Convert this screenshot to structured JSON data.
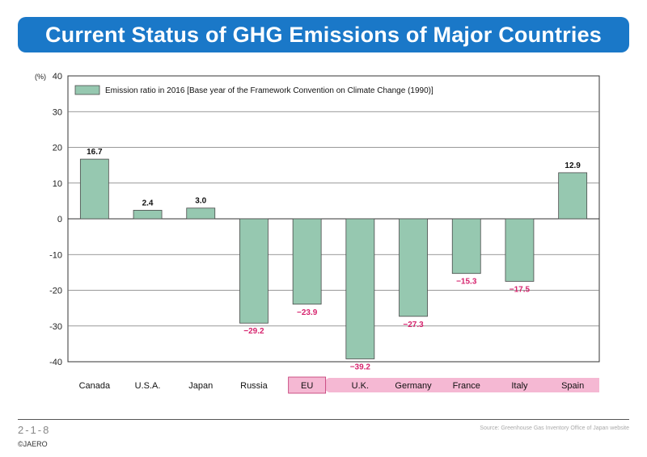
{
  "title": "Current Status of GHG Emissions of Major Countries",
  "figure_number": "2-1-8",
  "copyright": "©JAERO",
  "source": "Source: Greenhouse Gas Inventory Office of Japan website",
  "colors": {
    "banner": "#1a78c8",
    "bar_fill": "#96c8b0",
    "bar_stroke": "#4a4a4a",
    "negative_label": "#d6246e",
    "eu_highlight": "#f5b8d3",
    "eu_border": "#c0306e"
  },
  "chart_data": {
    "type": "bar",
    "unit_label": "(%)",
    "legend_label": "Emission ratio in 2016 [Base year of the Framework Convention on Climate Change (1990)]",
    "legend_position": "top-left",
    "ylim": [
      -40,
      40
    ],
    "yticks": [
      40,
      30,
      20,
      10,
      0,
      -10,
      -20,
      -30,
      -40
    ],
    "grid": true,
    "categories": [
      "Canada",
      "U.S.A.",
      "Japan",
      "Russia",
      "EU",
      "U.K.",
      "Germany",
      "France",
      "Italy",
      "Spain"
    ],
    "values": [
      16.7,
      2.4,
      3.0,
      -29.2,
      -23.9,
      -39.2,
      -27.3,
      -15.3,
      -17.5,
      12.9
    ],
    "value_labels": [
      "16.7",
      "2.4",
      "3.0",
      "−29.2",
      "−23.9",
      "−39.2",
      "−27.3",
      "−15.3",
      "−17.5",
      "12.9"
    ],
    "highlight_category": "EU",
    "eu_members_bracket": [
      "U.K.",
      "Germany",
      "France",
      "Italy",
      "Spain"
    ]
  }
}
